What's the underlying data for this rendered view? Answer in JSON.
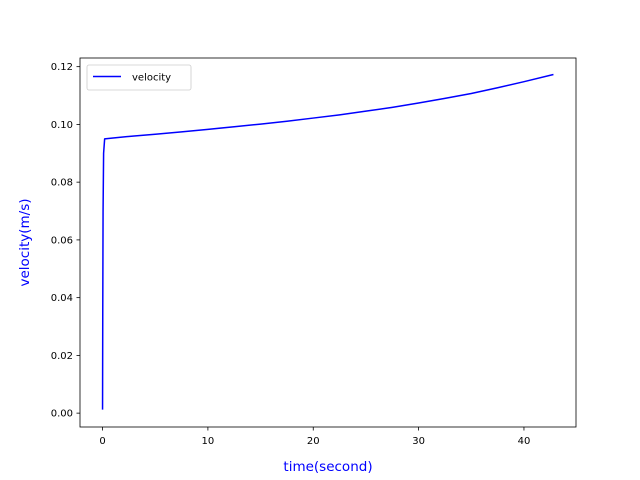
{
  "chart_data": {
    "type": "line",
    "title": "",
    "xlabel": "time(second)",
    "ylabel": "velocity(m/s)",
    "label_color": "#0000ff",
    "xlim": [
      -2.14,
      44.94
    ],
    "ylim": [
      -0.0048,
      0.123
    ],
    "xticks": [
      0,
      10,
      20,
      30,
      40
    ],
    "xtick_labels": [
      "0",
      "10",
      "20",
      "30",
      "40"
    ],
    "yticks": [
      0.0,
      0.02,
      0.04,
      0.06,
      0.08,
      0.1,
      0.12
    ],
    "ytick_labels": [
      "0.00",
      "0.02",
      "0.04",
      "0.06",
      "0.08",
      "0.10",
      "0.12"
    ],
    "grid": false,
    "legend_position": "upper-left",
    "series": [
      {
        "name": "velocity",
        "color": "#0000ff",
        "x": [
          0.0,
          0.02,
          0.05,
          0.1,
          0.2,
          1,
          3,
          5,
          7.5,
          10,
          12.5,
          15,
          17.5,
          20,
          22.5,
          25,
          27.5,
          30,
          32.5,
          35,
          37.5,
          40,
          42.8
        ],
        "y": [
          0.0012,
          0.035,
          0.07,
          0.09,
          0.095,
          0.0953,
          0.096,
          0.0966,
          0.0974,
          0.0983,
          0.0992,
          0.1001,
          0.1011,
          0.1022,
          0.1033,
          0.1046,
          0.1059,
          0.1074,
          0.109,
          0.1107,
          0.1127,
          0.1148,
          0.1173
        ]
      }
    ]
  }
}
